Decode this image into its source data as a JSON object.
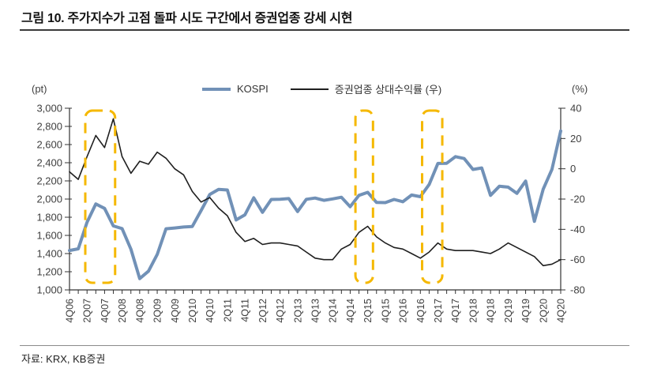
{
  "figure": {
    "title": "그림 10. 주가지수가 고점 돌파 시도 구간에서 증권업종 강세 시현",
    "source": "자료: KRX, KB증권"
  },
  "legend": [
    {
      "label": "KOSPI",
      "color": "#7191B7"
    },
    {
      "label": "증권업종 상대수익률 (우)",
      "color": "#1F1F1F"
    }
  ],
  "chart_data": {
    "type": "line",
    "title": "",
    "xlabel": "",
    "grid": false,
    "legend_position": "top-center",
    "quarters_per_label": 2,
    "x_tick_labels": [
      "4Q06",
      "2Q07",
      "4Q07",
      "2Q08",
      "4Q08",
      "2Q09",
      "4Q09",
      "2Q10",
      "4Q10",
      "2Q11",
      "4Q11",
      "2Q12",
      "4Q12",
      "2Q13",
      "4Q13",
      "2Q14",
      "4Q14",
      "2Q15",
      "4Q15",
      "2Q16",
      "4Q16",
      "2Q17",
      "4Q17",
      "2Q18",
      "4Q18",
      "2Q19",
      "4Q19",
      "2Q20",
      "4Q20"
    ],
    "y_left": {
      "unit": "(pt)",
      "min": 1000,
      "max": 3000,
      "step": 200,
      "tick_labels": [
        "1,000",
        "1,200",
        "1,400",
        "1,600",
        "1,800",
        "2,000",
        "2,200",
        "2,400",
        "2,600",
        "2,800",
        "3,000"
      ]
    },
    "y_right": {
      "unit": "(%)",
      "min": -80,
      "max": 40,
      "step": 20,
      "tick_labels": [
        "-80",
        "-60",
        "-40",
        "-20",
        "0",
        "20",
        "40"
      ]
    },
    "series": [
      {
        "name": "KOSPI",
        "axis": "left",
        "color": "#7191B7",
        "stroke_width": 4,
        "values": [
          1434,
          1452,
          1744,
          1946,
          1897,
          1704,
          1675,
          1448,
          1124,
          1206,
          1390,
          1673,
          1682,
          1692,
          1698,
          1873,
          2051,
          2106,
          2100,
          1770,
          1826,
          2014,
          1854,
          1996,
          1997,
          2005,
          1863,
          1997,
          2011,
          1986,
          2002,
          2020,
          1916,
          2041,
          2074,
          1963,
          1961,
          1996,
          1970,
          2044,
          2026,
          2160,
          2392,
          2394,
          2467,
          2446,
          2326,
          2343,
          2041,
          2141,
          2131,
          2063,
          2198,
          1755,
          2108,
          2327,
          2750
        ]
      },
      {
        "name": "증권업종 상대수익률 (우)",
        "axis": "right",
        "color": "#1F1F1F",
        "stroke_width": 1.6,
        "values": [
          -2,
          -7,
          8,
          22,
          14,
          33,
          8,
          -3,
          5,
          3,
          11,
          7,
          0,
          -4,
          -15,
          -22,
          -19,
          -26,
          -31,
          -42,
          -48,
          -46,
          -50,
          -49,
          -49,
          -50,
          -51,
          -55,
          -59,
          -60,
          -60,
          -53,
          -50,
          -42,
          -38,
          -45,
          -49,
          -52,
          -53,
          -56,
          -59,
          -55,
          -49,
          -53,
          -54,
          -54,
          -54,
          -55,
          -56,
          -53,
          -49,
          -52,
          -55,
          -58,
          -64,
          -63,
          -60
        ]
      }
    ],
    "highlights": {
      "color": "#F5B800",
      "style": "dashed-rounded-rect",
      "ranges": [
        {
          "q_start": 1.8,
          "q_end": 5.2
        },
        {
          "q_start": 32.6,
          "q_end": 34.6
        },
        {
          "q_start": 40.2,
          "q_end": 42.5
        }
      ]
    }
  }
}
